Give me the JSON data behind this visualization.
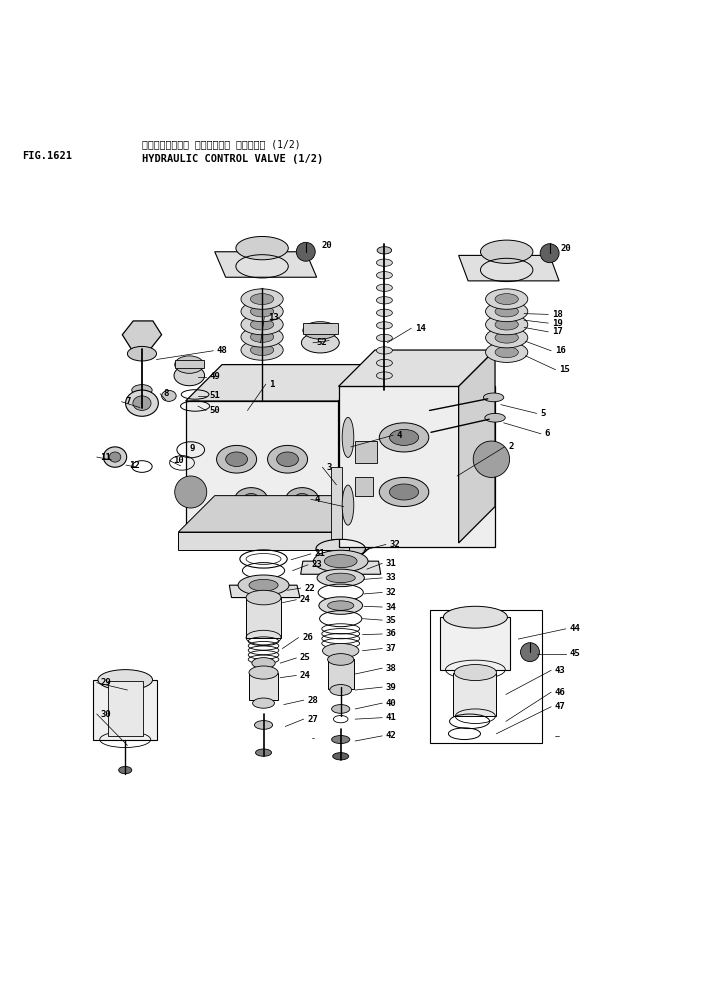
{
  "title_jp": "ハイト。ロリック コントロール ハ。ルフ。 (1/2)",
  "title_en": "HYDRAULIC CONTROL VALVE (1/2)",
  "fig_label": "FIG.1621",
  "bg_color": "#ffffff",
  "line_color": "#000000",
  "text_color": "#000000",
  "figsize": [
    7.28,
    9.84
  ],
  "dpi": 100
}
